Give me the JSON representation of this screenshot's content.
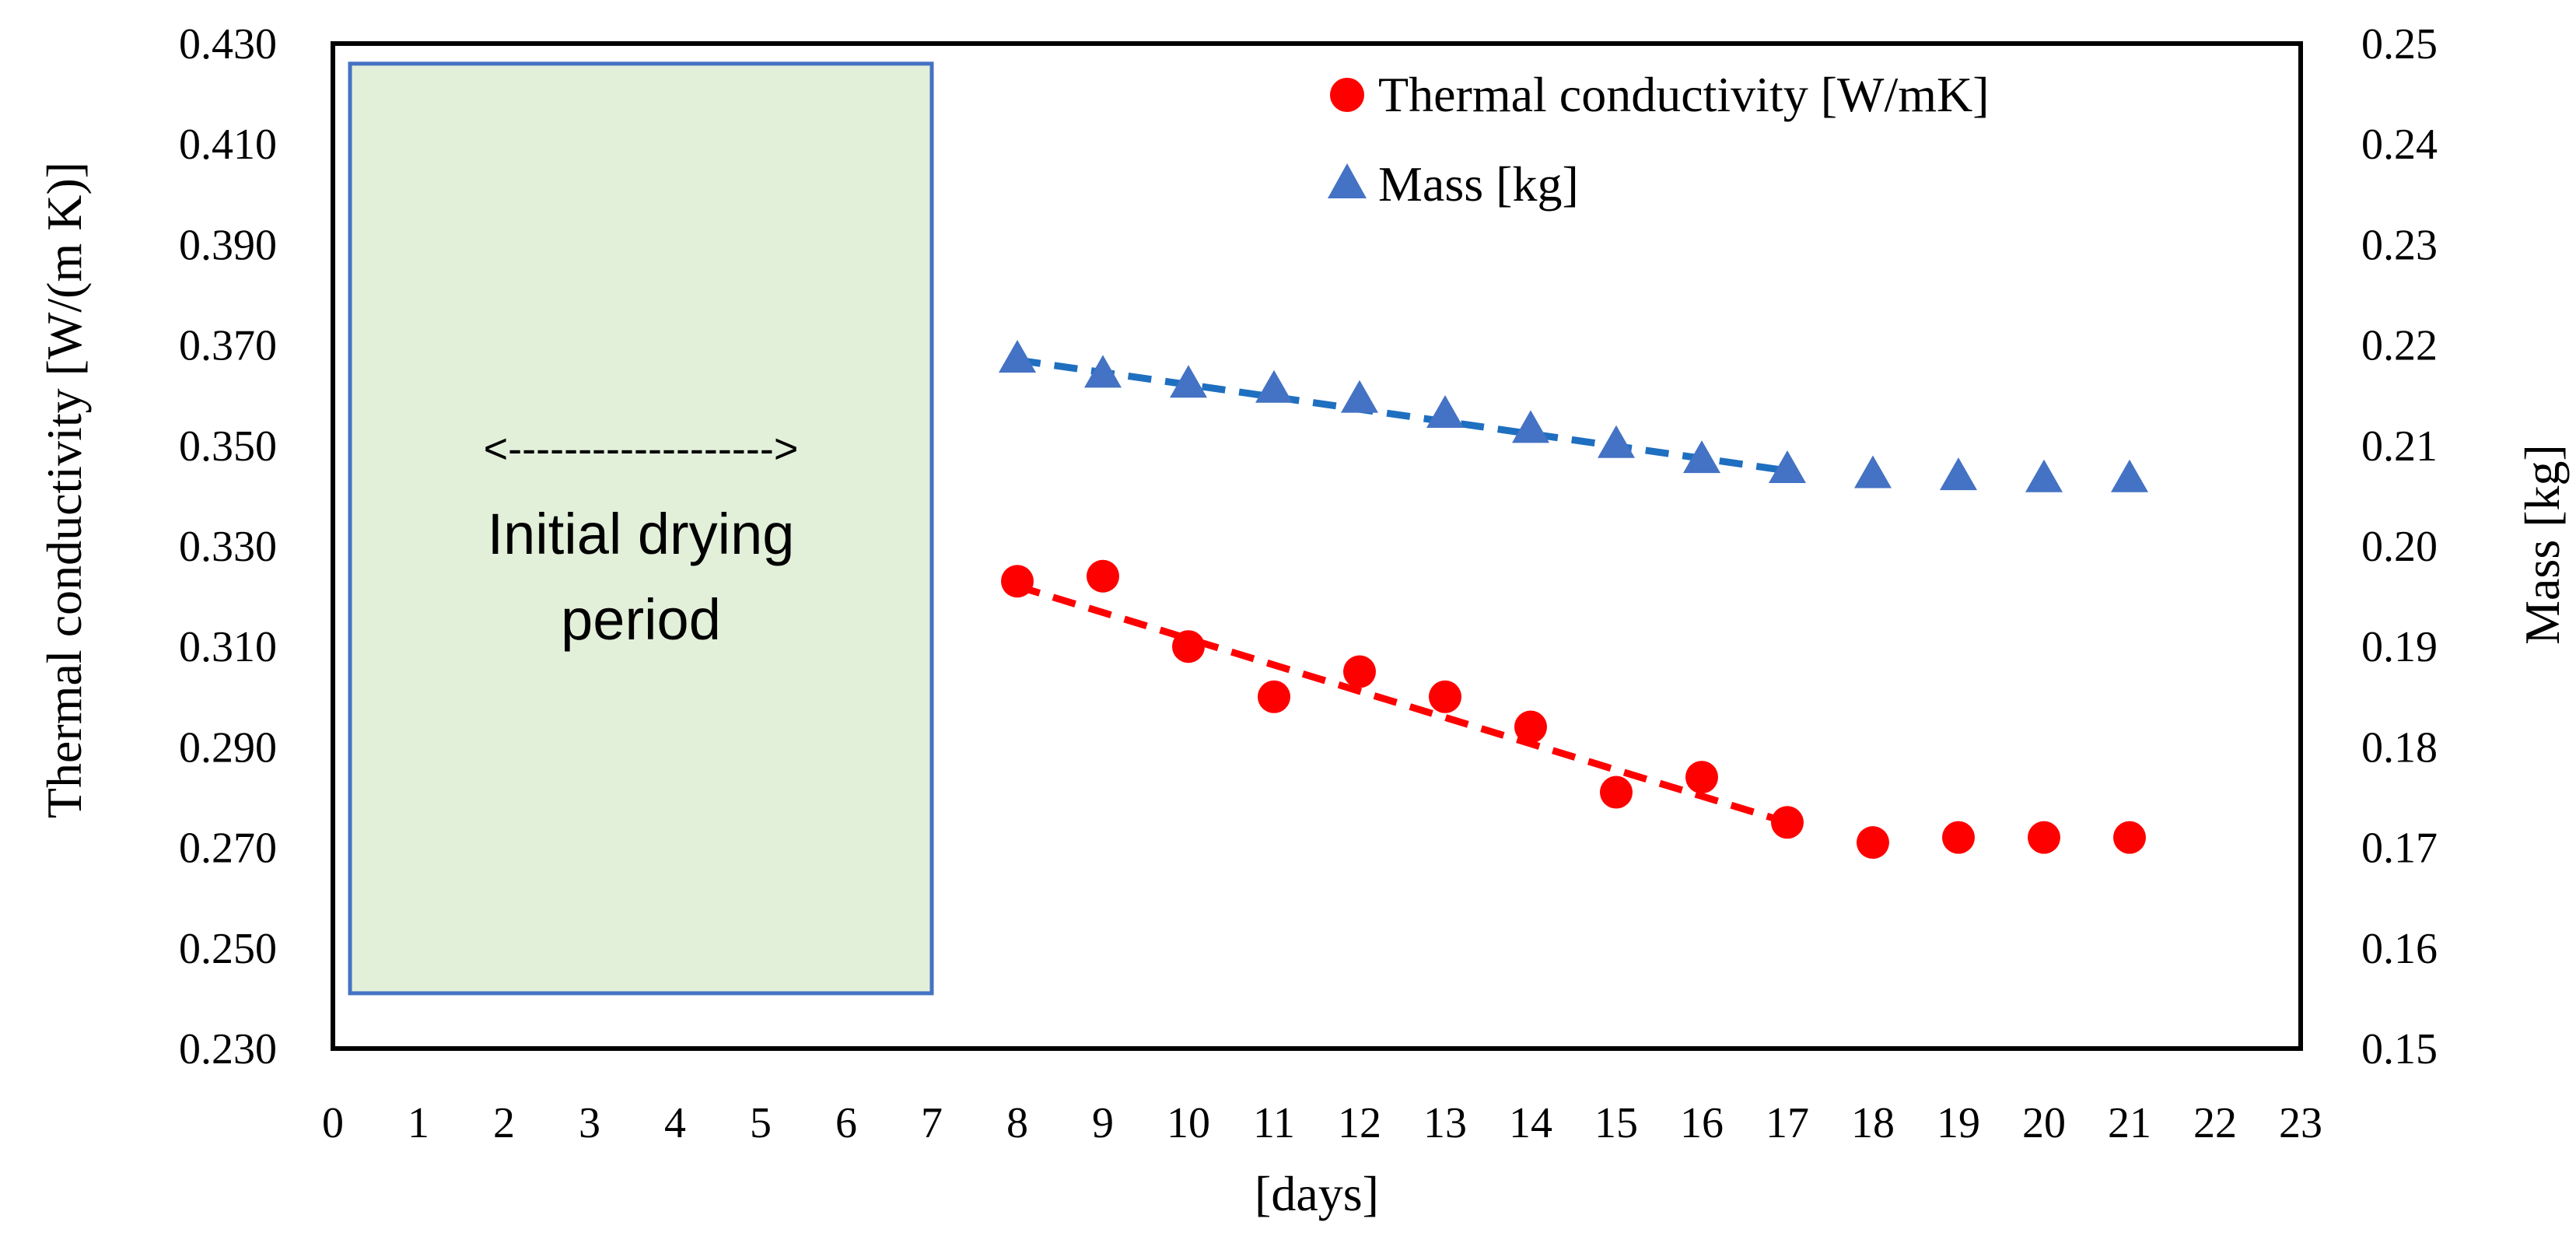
{
  "chart_data": {
    "type": "scatter",
    "title": "",
    "xlabel": "[days]",
    "ylabel_left": "Thermal conductivity [W/(m K)]",
    "ylabel_right": "Mass [kg]",
    "xlim": [
      0,
      23
    ],
    "x_ticks": [
      0,
      1,
      2,
      3,
      4,
      5,
      6,
      7,
      8,
      9,
      10,
      11,
      12,
      13,
      14,
      15,
      16,
      17,
      18,
      19,
      20,
      21,
      22,
      23
    ],
    "ylim_left": [
      0.23,
      0.43
    ],
    "y_left_ticks": [
      "0.230",
      "0.250",
      "0.270",
      "0.290",
      "0.310",
      "0.330",
      "0.350",
      "0.370",
      "0.390",
      "0.410",
      "0.430"
    ],
    "ylim_right": [
      0.15,
      0.25
    ],
    "y_right_ticks": [
      "0.15",
      "0.16",
      "0.17",
      "0.18",
      "0.19",
      "0.20",
      "0.21",
      "0.22",
      "0.23",
      "0.24",
      "0.25"
    ],
    "grid": false,
    "legend_position": "top-right",
    "series": [
      {
        "name": "Thermal conductivity [W/mK]",
        "axis": "left",
        "marker": "circle",
        "color": "#ff0000",
        "x": [
          8,
          9,
          10,
          11,
          12,
          13,
          14,
          15,
          16,
          17,
          18,
          19,
          20,
          21
        ],
        "values": [
          0.323,
          0.324,
          0.31,
          0.3,
          0.305,
          0.3,
          0.294,
          0.281,
          0.284,
          0.275,
          0.271,
          0.272,
          0.272,
          0.272
        ],
        "trend": {
          "x": [
            8,
            17
          ],
          "values": [
            0.322,
            0.275
          ],
          "color": "#ff0000",
          "style": "dashed"
        }
      },
      {
        "name": "Mass [kg]",
        "axis": "right",
        "marker": "triangle",
        "color": "#4472c4",
        "x": [
          8,
          9,
          10,
          11,
          12,
          13,
          14,
          15,
          16,
          17,
          18,
          19,
          20,
          21
        ],
        "values": [
          0.2185,
          0.217,
          0.216,
          0.2155,
          0.2145,
          0.213,
          0.2115,
          0.21,
          0.2085,
          0.2075,
          0.207,
          0.2068,
          0.2066,
          0.2066
        ],
        "trend": {
          "x": [
            8,
            17
          ],
          "values": [
            0.2185,
            0.2075
          ],
          "color": "#1f6fc0",
          "style": "dashed"
        }
      }
    ],
    "annotation": {
      "x_range": [
        0.2,
        7
      ],
      "y_range": [
        0.241,
        0.426
      ],
      "fill": "#e2efd9",
      "border": "#4472c4",
      "arrow_text": "<------------------->",
      "label_line1": "Initial drying",
      "label_line2": "period"
    }
  }
}
